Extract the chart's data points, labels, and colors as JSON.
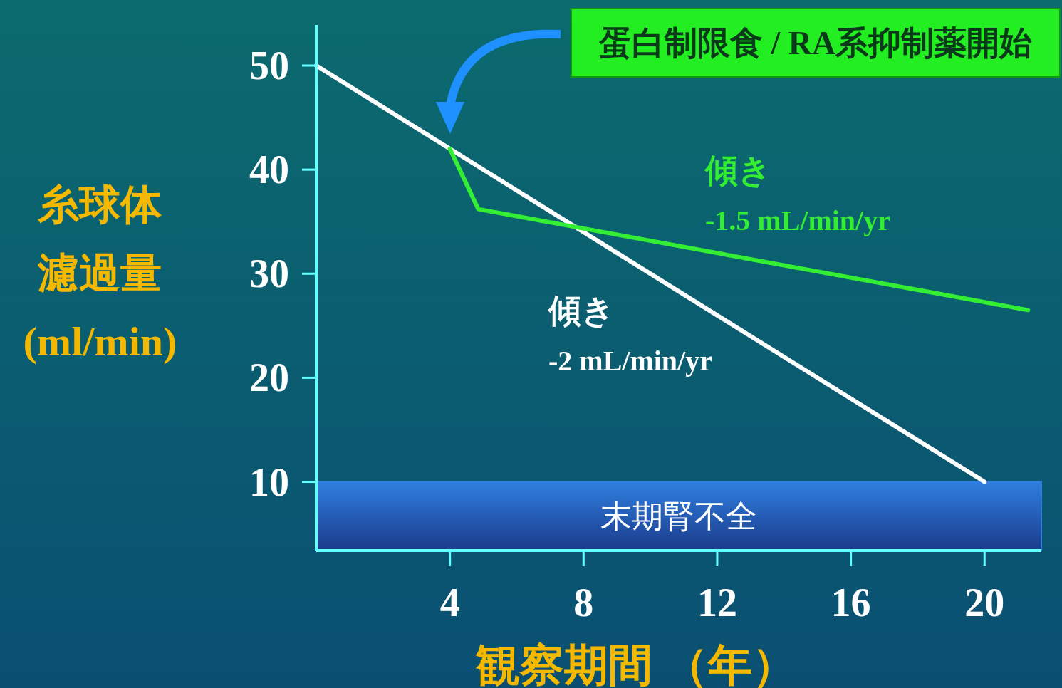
{
  "chart_data": {
    "type": "line",
    "xlabel": "観察期間 （年）",
    "ylabel": "糸球体濾過量(ml/min)",
    "xlim": [
      0,
      21.7
    ],
    "ylim": [
      3.4,
      53.9
    ],
    "xticks": [
      4,
      8,
      12,
      16,
      20
    ],
    "yticks": [
      10,
      20,
      30,
      40,
      50
    ],
    "series": [
      {
        "color": "#ffffff",
        "x": [
          0,
          20
        ],
        "values": [
          50,
          10
        ]
      },
      {
        "color": "#33ee33",
        "x": [
          4,
          4.85,
          21.3
        ],
        "values": [
          42,
          36.2,
          26.5
        ]
      }
    ],
    "bands": [
      {
        "axis": "y",
        "from": 3.4,
        "to": 10,
        "label": "末期腎不全",
        "color": "#2f7fe0"
      }
    ],
    "annotations": [
      "蛋白制限食 / RA系抑制薬開始",
      "傾き\n-1.5 mL/min/yr",
      "傾き\n-2 mL/min/yr"
    ]
  }
}
